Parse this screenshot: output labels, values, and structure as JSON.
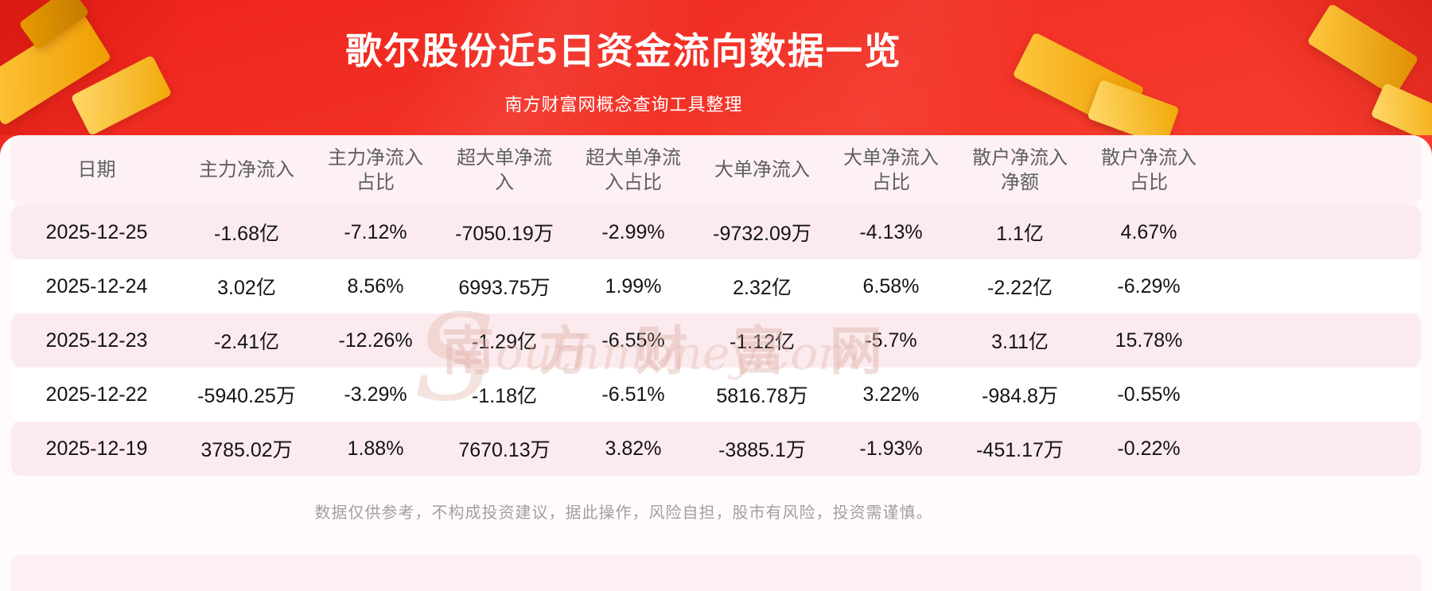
{
  "header": {
    "title": "歌尔股份近5日资金流向数据一览",
    "subtitle": "南方财富网概念查询工具整理"
  },
  "chart_data": {
    "type": "table",
    "title": "歌尔股份近5日资金流向数据一览",
    "columns": [
      "日期",
      "主力净流入",
      "主力净流入\n占比",
      "超大单净流\n入",
      "超大单净流\n入占比",
      "大单净流入",
      "大单净流入\n占比",
      "散户净流入\n净额",
      "散户净流入\n占比"
    ],
    "rows": [
      [
        "2025-12-25",
        "-1.68亿",
        "-7.12%",
        "-7050.19万",
        "-2.99%",
        "-9732.09万",
        "-4.13%",
        "1.1亿",
        "4.67%"
      ],
      [
        "2025-12-24",
        "3.02亿",
        "8.56%",
        "6993.75万",
        "1.99%",
        "2.32亿",
        "6.58%",
        "-2.22亿",
        "-6.29%"
      ],
      [
        "2025-12-23",
        "-2.41亿",
        "-12.26%",
        "-1.29亿",
        "-6.55%",
        "-1.12亿",
        "-5.7%",
        "3.11亿",
        "15.78%"
      ],
      [
        "2025-12-22",
        "-5940.25万",
        "-3.29%",
        "-1.18亿",
        "-6.51%",
        "5816.78万",
        "3.22%",
        "-984.8万",
        "-0.55%"
      ],
      [
        "2025-12-19",
        "3785.02万",
        "1.88%",
        "7670.13万",
        "3.82%",
        "-3885.1万",
        "-1.93%",
        "-451.17万",
        "-0.22%"
      ]
    ]
  },
  "watermark": {
    "cn": "南方财富网",
    "s": "S",
    "rest": "outhmoney.com"
  },
  "footer": {
    "disclaimer": "数据仅供参考，不构成投资建议，据此操作，风险自担，股市有风险，投资需谨慎。"
  },
  "colors": {
    "brand_red": "#f33b2e",
    "gold": "#f5a800",
    "row_pink": "#fcebee",
    "header_pink": "#fdf1f3",
    "text_dark": "#141414",
    "muted_text": "#a59d9e"
  }
}
